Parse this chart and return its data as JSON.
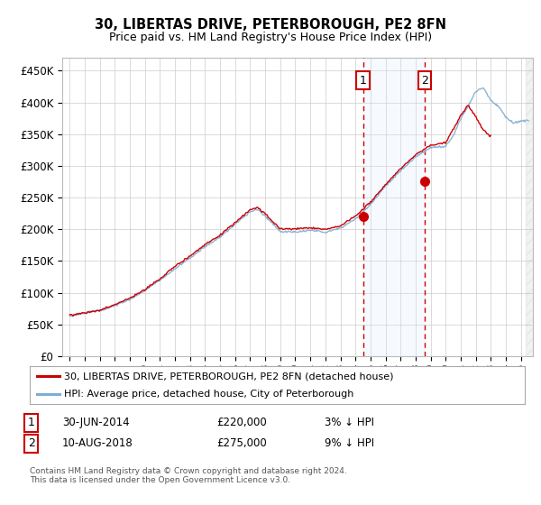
{
  "title": "30, LIBERTAS DRIVE, PETERBOROUGH, PE2 8FN",
  "subtitle": "Price paid vs. HM Land Registry's House Price Index (HPI)",
  "yticks": [
    0,
    50000,
    100000,
    150000,
    200000,
    250000,
    300000,
    350000,
    400000,
    450000
  ],
  "ylim": [
    0,
    470000
  ],
  "xlim_start": 1994.5,
  "xlim_end": 2025.8,
  "hpi_color": "#7eadd4",
  "price_color": "#cc0000",
  "vline_color": "#cc0000",
  "shade_color": "#ddeeff",
  "transaction1_x": 2014.5,
  "transaction1_y": 220000,
  "transaction2_x": 2018.62,
  "transaction2_y": 275000,
  "legend_line1": "30, LIBERTAS DRIVE, PETERBOROUGH, PE2 8FN (detached house)",
  "legend_line2": "HPI: Average price, detached house, City of Peterborough",
  "note1_label": "1",
  "note1_date": "30-JUN-2014",
  "note1_price": "£220,000",
  "note1_hpi": "3% ↓ HPI",
  "note2_label": "2",
  "note2_date": "10-AUG-2018",
  "note2_price": "£275,000",
  "note2_hpi": "9% ↓ HPI",
  "copyright": "Contains HM Land Registry data © Crown copyright and database right 2024.\nThis data is licensed under the Open Government Licence v3.0.",
  "background_color": "#ffffff",
  "grid_color": "#cccccc"
}
